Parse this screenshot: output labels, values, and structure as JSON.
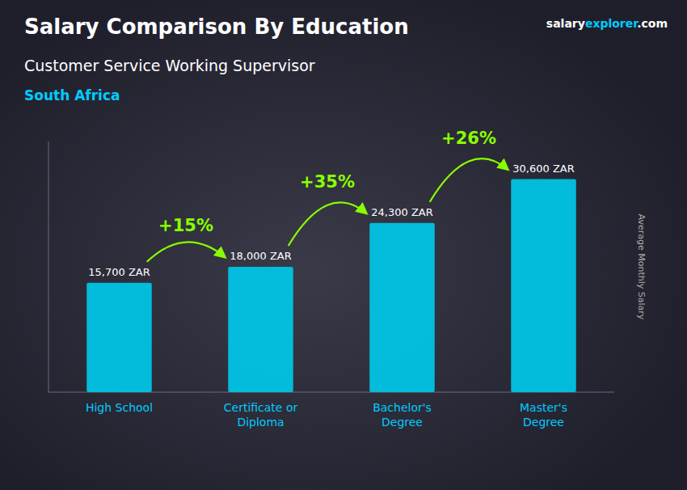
{
  "chart_data": {
    "type": "bar",
    "title": "Salary Comparison By Education",
    "subtitle": "Customer Service Working Supervisor",
    "country": "South Africa",
    "brand": [
      "salary",
      "explorer",
      ".com"
    ],
    "ylabel": "Average Monthly Salary",
    "categories": [
      "High School",
      "Certificate or\nDiploma",
      "Bachelor's\nDegree",
      "Master's\nDegree"
    ],
    "values": [
      15700,
      18000,
      24300,
      30600
    ],
    "value_labels": [
      "15,700 ZAR",
      "18,000 ZAR",
      "24,300 ZAR",
      "30,600 ZAR"
    ],
    "data_labels": true,
    "annotations": [
      "+15%",
      "+35%",
      "+26%"
    ],
    "color": "#00c8e8",
    "ylim": [
      0,
      36000
    ],
    "tick_labels": "x",
    "grid": false
  }
}
